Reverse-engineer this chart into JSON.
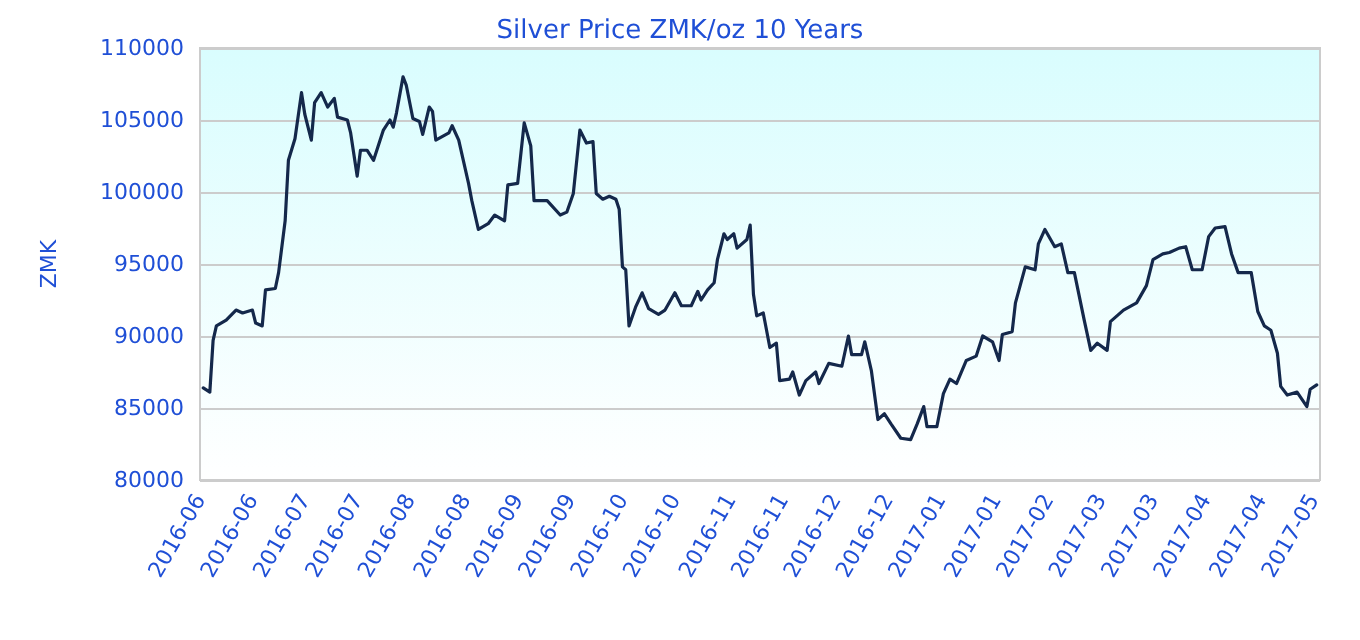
{
  "chart_data": {
    "type": "line",
    "title": "Silver Price ZMK/oz 10 Years",
    "ylabel": "ZMK",
    "x": [
      "2016-06-02",
      "2016-06-04",
      "2016-06-05",
      "2016-06-06",
      "2016-06-09",
      "2016-06-12",
      "2016-06-14",
      "2016-06-17",
      "2016-06-18",
      "2016-06-20",
      "2016-06-21",
      "2016-06-24",
      "2016-06-25",
      "2016-06-27",
      "2016-06-28",
      "2016-06-30",
      "2016-07-02",
      "2016-07-03",
      "2016-07-05",
      "2016-07-06",
      "2016-07-08",
      "2016-07-10",
      "2016-07-12",
      "2016-07-13",
      "2016-07-16",
      "2016-07-17",
      "2016-07-19",
      "2016-07-20",
      "2016-07-22",
      "2016-07-24",
      "2016-07-27",
      "2016-07-29",
      "2016-07-30",
      "2016-07-31",
      "2016-08-02",
      "2016-08-03",
      "2016-08-05",
      "2016-08-07",
      "2016-08-08",
      "2016-08-10",
      "2016-08-11",
      "2016-08-12",
      "2016-08-16",
      "2016-08-17",
      "2016-08-19",
      "2016-08-22",
      "2016-08-23",
      "2016-08-25",
      "2016-08-28",
      "2016-08-30",
      "2016-09-02",
      "2016-09-03",
      "2016-09-06",
      "2016-09-08",
      "2016-09-10",
      "2016-09-11",
      "2016-09-15",
      "2016-09-19",
      "2016-09-21",
      "2016-09-23",
      "2016-09-25",
      "2016-09-27",
      "2016-09-29",
      "2016-09-30",
      "2016-10-02",
      "2016-10-04",
      "2016-10-06",
      "2016-10-07",
      "2016-10-08",
      "2016-10-09",
      "2016-10-10",
      "2016-10-12",
      "2016-10-14",
      "2016-10-16",
      "2016-10-19",
      "2016-10-21",
      "2016-10-24",
      "2016-10-26",
      "2016-10-29",
      "2016-10-31",
      "2016-11-01",
      "2016-11-03",
      "2016-11-05",
      "2016-11-06",
      "2016-11-08",
      "2016-11-09",
      "2016-11-11",
      "2016-11-12",
      "2016-11-15",
      "2016-11-16",
      "2016-11-17",
      "2016-11-18",
      "2016-11-20",
      "2016-11-22",
      "2016-11-24",
      "2016-11-25",
      "2016-11-28",
      "2016-11-29",
      "2016-12-01",
      "2016-12-03",
      "2016-12-06",
      "2016-12-07",
      "2016-12-10",
      "2016-12-14",
      "2016-12-16",
      "2016-12-17",
      "2016-12-20",
      "2016-12-21",
      "2016-12-23",
      "2016-12-25",
      "2016-12-27",
      "2016-12-29",
      "2017-01-01",
      "2017-01-04",
      "2017-01-06",
      "2017-01-08",
      "2017-01-09",
      "2017-01-12",
      "2017-01-14",
      "2017-01-16",
      "2017-01-18",
      "2017-01-21",
      "2017-01-24",
      "2017-01-26",
      "2017-01-29",
      "2017-01-31",
      "2017-02-01",
      "2017-02-04",
      "2017-02-05",
      "2017-02-08",
      "2017-02-11",
      "2017-02-12",
      "2017-02-14",
      "2017-02-17",
      "2017-02-19",
      "2017-02-21",
      "2017-02-23",
      "2017-02-26",
      "2017-02-28",
      "2017-03-02",
      "2017-03-05",
      "2017-03-06",
      "2017-03-10",
      "2017-03-14",
      "2017-03-17",
      "2017-03-19",
      "2017-03-22",
      "2017-03-24",
      "2017-03-27",
      "2017-03-29",
      "2017-03-31",
      "2017-04-03",
      "2017-04-05",
      "2017-04-07",
      "2017-04-10",
      "2017-04-12",
      "2017-04-14",
      "2017-04-18",
      "2017-04-20",
      "2017-04-22",
      "2017-04-24",
      "2017-04-26",
      "2017-04-27",
      "2017-04-29",
      "2017-05-02",
      "2017-05-05",
      "2017-05-06",
      "2017-05-08"
    ],
    "series": [
      {
        "color": "#14284b",
        "values": [
          86400,
          86100,
          89700,
          90700,
          91100,
          91800,
          91600,
          91800,
          90900,
          90700,
          93200,
          93300,
          94400,
          98000,
          102200,
          103700,
          106900,
          105400,
          103600,
          106200,
          106900,
          105900,
          106500,
          105200,
          105000,
          104100,
          101100,
          102900,
          102900,
          102200,
          104300,
          105000,
          104500,
          105500,
          108000,
          107400,
          105100,
          104900,
          104000,
          105900,
          105600,
          103600,
          104100,
          104600,
          103600,
          100600,
          99400,
          97400,
          97800,
          98400,
          98000,
          100500,
          100600,
          104800,
          103200,
          99400,
          99400,
          98400,
          98600,
          99900,
          104300,
          103400,
          103500,
          99900,
          99500,
          99700,
          99500,
          98800,
          94800,
          94600,
          90700,
          92000,
          93000,
          91900,
          91500,
          91800,
          93000,
          92100,
          92100,
          93100,
          92500,
          93200,
          93700,
          95300,
          97100,
          96700,
          97100,
          96100,
          96700,
          97700,
          92900,
          91400,
          91600,
          89200,
          89500,
          86900,
          87000,
          87500,
          85900,
          86900,
          87500,
          86700,
          88100,
          87900,
          90000,
          88700,
          88700,
          89600,
          87600,
          84200,
          84600,
          83900,
          82900,
          82800,
          83900,
          85100,
          83700,
          83700,
          86000,
          87000,
          86700,
          88300,
          88600,
          90000,
          89600,
          88300,
          90100,
          90300,
          92300,
          94800,
          94600,
          96400,
          97400,
          96200,
          96400,
          94400,
          94400,
          91100,
          89000,
          89500,
          89000,
          91000,
          91800,
          92300,
          93500,
          95300,
          95700,
          95800,
          96100,
          96200,
          94600,
          94600,
          96900,
          97500,
          97600,
          95700,
          94400,
          94400,
          91700,
          90700,
          90400,
          88800,
          86500,
          85900,
          86100,
          85100,
          86300,
          86600
        ]
      }
    ],
    "xlim": [
      "2016-06-01",
      "2017-05-09"
    ],
    "xticks": [
      {
        "value": "2016-06-01",
        "label": "2016-06"
      },
      {
        "value": "2016-06-17",
        "label": "2016-06"
      },
      {
        "value": "2016-07-03",
        "label": "2016-07"
      },
      {
        "value": "2016-07-19",
        "label": "2016-07"
      },
      {
        "value": "2016-08-04",
        "label": "2016-08"
      },
      {
        "value": "2016-08-21",
        "label": "2016-08"
      },
      {
        "value": "2016-09-06",
        "label": "2016-09"
      },
      {
        "value": "2016-09-22",
        "label": "2016-09"
      },
      {
        "value": "2016-10-08",
        "label": "2016-10"
      },
      {
        "value": "2016-10-24",
        "label": "2016-10"
      },
      {
        "value": "2016-11-10",
        "label": "2016-11"
      },
      {
        "value": "2016-11-26",
        "label": "2016-11"
      },
      {
        "value": "2016-12-12",
        "label": "2016-12"
      },
      {
        "value": "2016-12-28",
        "label": "2016-12"
      },
      {
        "value": "2017-01-13",
        "label": "2017-01"
      },
      {
        "value": "2017-01-30",
        "label": "2017-01"
      },
      {
        "value": "2017-02-15",
        "label": "2017-02"
      },
      {
        "value": "2017-03-03",
        "label": "2017-03"
      },
      {
        "value": "2017-03-19",
        "label": "2017-03"
      },
      {
        "value": "2017-04-04",
        "label": "2017-04"
      },
      {
        "value": "2017-04-21",
        "label": "2017-04"
      },
      {
        "value": "2017-05-07",
        "label": "2017-05"
      }
    ],
    "ylim": [
      80000,
      110000
    ],
    "yticks": [
      80000,
      85000,
      90000,
      95000,
      100000,
      105000,
      110000
    ],
    "grid": "y",
    "marker": "none",
    "line_style": "solid"
  }
}
